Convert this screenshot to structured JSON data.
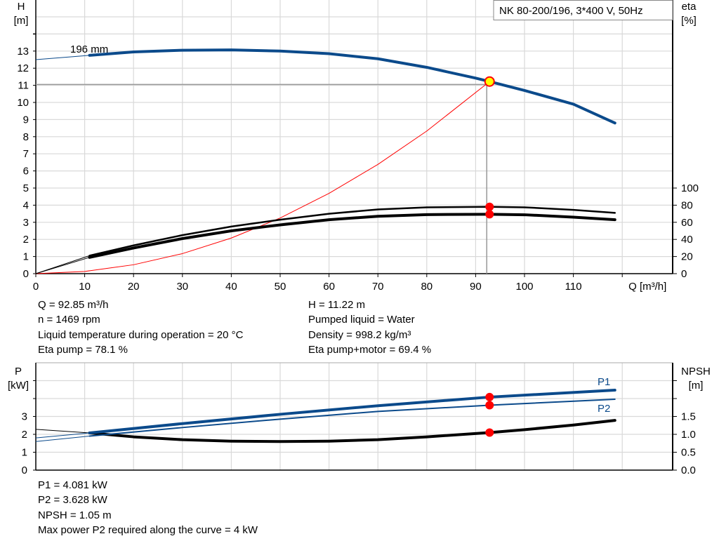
{
  "chart_data": [
    {
      "type": "line",
      "title": "NK 80-200/196, 3*400 V, 50Hz",
      "xlabel": "Q [m³/h]",
      "ylabel": "H\n[m]",
      "ylabel_left_lines": [
        "H",
        "[m]"
      ],
      "ylabel_right_lines": [
        "eta",
        "[%]"
      ],
      "xlim": [
        0,
        130
      ],
      "ylim": [
        0,
        15
      ],
      "y2lim": [
        0,
        123
      ],
      "x_ticks": [
        "0",
        "10",
        "20",
        "30",
        "40",
        "50",
        "60",
        "70",
        "80",
        "90",
        "100",
        "110"
      ],
      "y_ticks": [
        "0",
        "1",
        "2",
        "3",
        "4",
        "5",
        "6",
        "7",
        "8",
        "9",
        "10",
        "11",
        "12",
        "13"
      ],
      "y2_ticks": [
        "0",
        "20",
        "40",
        "60",
        "80",
        "100"
      ],
      "grid": true,
      "impeller_label": "196 mm",
      "series": [
        {
          "key": "head",
          "axis": "H",
          "color": "#0b4a8b",
          "x": [
            11,
            20,
            30,
            40,
            50,
            60,
            70,
            80,
            90,
            92.85,
            100,
            110,
            118.5
          ],
          "values": [
            12.75,
            12.95,
            13.05,
            13.07,
            13.0,
            12.85,
            12.55,
            12.05,
            11.42,
            11.22,
            10.7,
            9.9,
            8.8
          ],
          "extrapolation": {
            "x": [
              0,
              11
            ],
            "values": [
              12.5,
              12.75
            ]
          }
        },
        {
          "key": "eta_pump",
          "axis": "eta",
          "color": "#000000",
          "x": [
            11,
            20,
            30,
            40,
            50,
            60,
            70,
            80,
            92.85,
            100,
            110,
            118.5
          ],
          "values": [
            21,
            33,
            45,
            55,
            63,
            70,
            75,
            77.5,
            78.1,
            77.5,
            74.5,
            71
          ],
          "extrapolation": {
            "x": [
              0,
              11
            ],
            "values": [
              0,
              21
            ]
          }
        },
        {
          "key": "eta_pump_motor",
          "axis": "eta",
          "color": "#000000",
          "x": [
            11,
            20,
            30,
            40,
            50,
            60,
            70,
            80,
            92.85,
            100,
            110,
            118.5
          ],
          "values": [
            19,
            30,
            41,
            50,
            57,
            63,
            67,
            69,
            69.4,
            68.8,
            66,
            63
          ],
          "extrapolation": {
            "x": [
              0,
              11
            ],
            "values": [
              0,
              19
            ]
          }
        },
        {
          "key": "system",
          "axis": "H",
          "color": "#ff0000",
          "x": [
            0,
            10,
            20,
            30,
            40,
            50,
            60,
            70,
            80,
            92.85
          ],
          "values": [
            0,
            0.13,
            0.52,
            1.17,
            2.08,
            3.25,
            4.69,
            6.38,
            8.33,
            11.22
          ]
        }
      ],
      "operating_point": {
        "Q": 92.85,
        "H": 11.22,
        "eta_pump": 78.1,
        "eta_pump_motor": 69.4
      }
    },
    {
      "type": "line",
      "ylabel_left_lines": [
        "P",
        "[kW]"
      ],
      "ylabel_right_lines": [
        "NPSH",
        "[m]"
      ],
      "xlim": [
        0,
        130
      ],
      "ylim": [
        0,
        5
      ],
      "y2lim": [
        0,
        2.5
      ],
      "y_ticks": [
        "0",
        "1",
        "2",
        "3"
      ],
      "y2_ticks": [
        "0.0",
        "0.5",
        "1.0",
        "1.5"
      ],
      "grid": true,
      "series": [
        {
          "key": "P1",
          "name": "P1",
          "axis": "P",
          "color": "#0b4a8b",
          "x": [
            11,
            30,
            50,
            70,
            92.85,
            118.5
          ],
          "values": [
            2.08,
            2.6,
            3.12,
            3.6,
            4.081,
            4.47
          ],
          "extrapolation": {
            "x": [
              0,
              11
            ],
            "values": [
              1.8,
              2.08
            ]
          }
        },
        {
          "key": "P2",
          "name": "P2",
          "axis": "P",
          "color": "#0b4a8b",
          "x": [
            11,
            30,
            50,
            70,
            92.85,
            118.5
          ],
          "values": [
            1.9,
            2.38,
            2.85,
            3.28,
            3.628,
            3.96
          ],
          "extrapolation": {
            "x": [
              0,
              11
            ],
            "values": [
              1.6,
              1.9
            ]
          }
        },
        {
          "key": "NPSH",
          "axis": "NPSH",
          "color": "#000000",
          "x": [
            11,
            20,
            30,
            40,
            50,
            60,
            70,
            80,
            92.85,
            100,
            110,
            118.5
          ],
          "values": [
            1.04,
            0.93,
            0.85,
            0.81,
            0.8,
            0.81,
            0.85,
            0.93,
            1.05,
            1.13,
            1.26,
            1.39
          ],
          "extrapolation": {
            "x": [
              0,
              11
            ],
            "values": [
              1.14,
              1.04
            ]
          }
        }
      ],
      "operating_point": {
        "Q": 92.85,
        "P1": 4.081,
        "P2": 3.628,
        "NPSH": 1.05
      }
    }
  ],
  "info_top_left": [
    "Q = 92.85 m³/h",
    "n = 1469 rpm",
    "Liquid temperature during operation = 20 °C",
    "Eta pump = 78.1 %"
  ],
  "info_top_right": [
    "H = 11.22 m",
    "Pumped liquid = Water",
    "Density = 998.2 kg/m³",
    "Eta pump+motor = 69.4 %"
  ],
  "info_bottom": [
    "P1 = 4.081 kW",
    "P2 = 3.628 kW",
    "NPSH = 1.05 m",
    "Max power P2 required along the curve = 4 kW"
  ],
  "colors": {
    "head": "#0b4a8b",
    "power": "#0b4a8b",
    "system": "#ff0000",
    "duty_point_fill": "#ffff00",
    "marker": "#ff0000",
    "grid": "#d9d9d9"
  }
}
